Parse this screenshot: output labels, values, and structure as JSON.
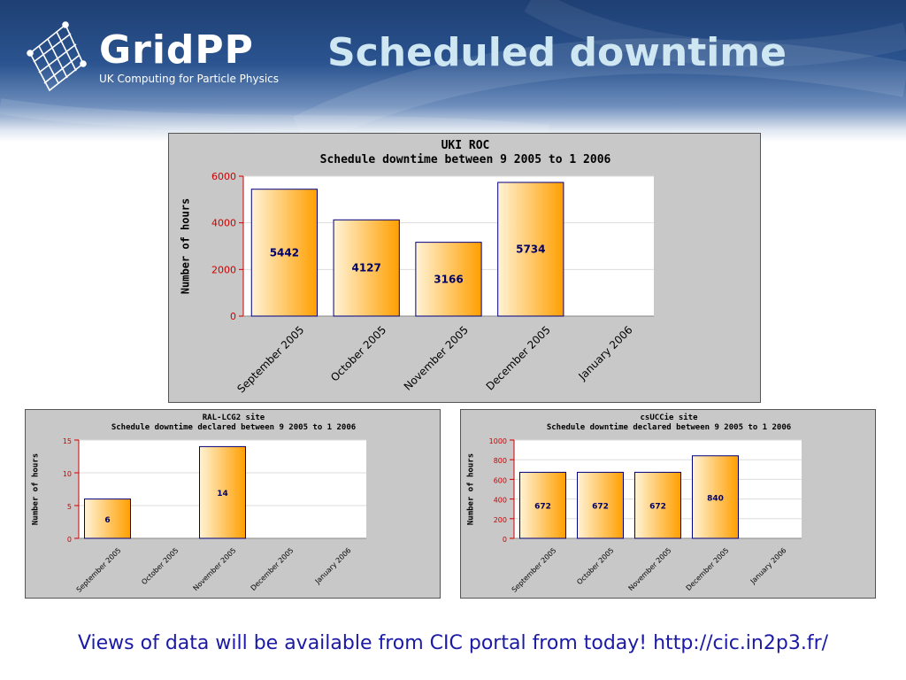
{
  "header": {
    "logo_text": "GridPP",
    "logo_subtitle": "UK Computing for Particle Physics",
    "title": "Scheduled downtime"
  },
  "colors": {
    "bar_start": "#fff3d6",
    "bar_end": "#ff9f00",
    "bar_border": "#000080",
    "tick": "#cc0000",
    "data_label": "#000066",
    "panel_bg": "#c8c8c8",
    "title_color": "#cfe6f3",
    "footer_color": "#1a1aa6"
  },
  "chart_data": [
    {
      "id": "uki",
      "type": "bar",
      "title_line1": "UKI ROC",
      "title_line2": "Schedule downtime between 9 2005 to 1 2006",
      "ylabel": "Number of hours",
      "categories": [
        "September 2005",
        "October 2005",
        "November 2005",
        "December 2005",
        "January 2006"
      ],
      "values": [
        5442,
        4127,
        3166,
        5734,
        0
      ],
      "value_labels": [
        "5442",
        "4127",
        "3166",
        "5734",
        ""
      ],
      "ylim": [
        0,
        6000
      ],
      "yticks": [
        0,
        2000,
        4000,
        6000
      ],
      "grid": true
    },
    {
      "id": "ral",
      "type": "bar",
      "title_line1": "RAL-LCG2 site",
      "title_line2": "Schedule downtime declared between 9 2005 to 1 2006",
      "ylabel": "Number of hours",
      "categories": [
        "September 2005",
        "October 2005",
        "November 2005",
        "December 2005",
        "January 2006"
      ],
      "values": [
        6,
        0,
        14,
        0,
        0
      ],
      "value_labels": [
        "6",
        "",
        "14",
        "",
        ""
      ],
      "ylim": [
        0,
        15
      ],
      "yticks": [
        0,
        5,
        10,
        15
      ],
      "grid": true
    },
    {
      "id": "cs",
      "type": "bar",
      "title_line1": "csUCCie site",
      "title_line2": "Schedule downtime declared between 9 2005 to 1 2006",
      "ylabel": "Number of hours",
      "categories": [
        "September 2005",
        "October 2005",
        "November 2005",
        "December 2005",
        "January 2006"
      ],
      "values": [
        672,
        672,
        672,
        840,
        0
      ],
      "value_labels": [
        "672",
        "672",
        "672",
        "840",
        ""
      ],
      "ylim": [
        0,
        1000
      ],
      "yticks": [
        0,
        200,
        400,
        600,
        800,
        1000
      ],
      "grid": true
    }
  ],
  "footer": {
    "text": "Views of data will be available from CIC portal from today! http://cic.in2p3.fr/"
  }
}
